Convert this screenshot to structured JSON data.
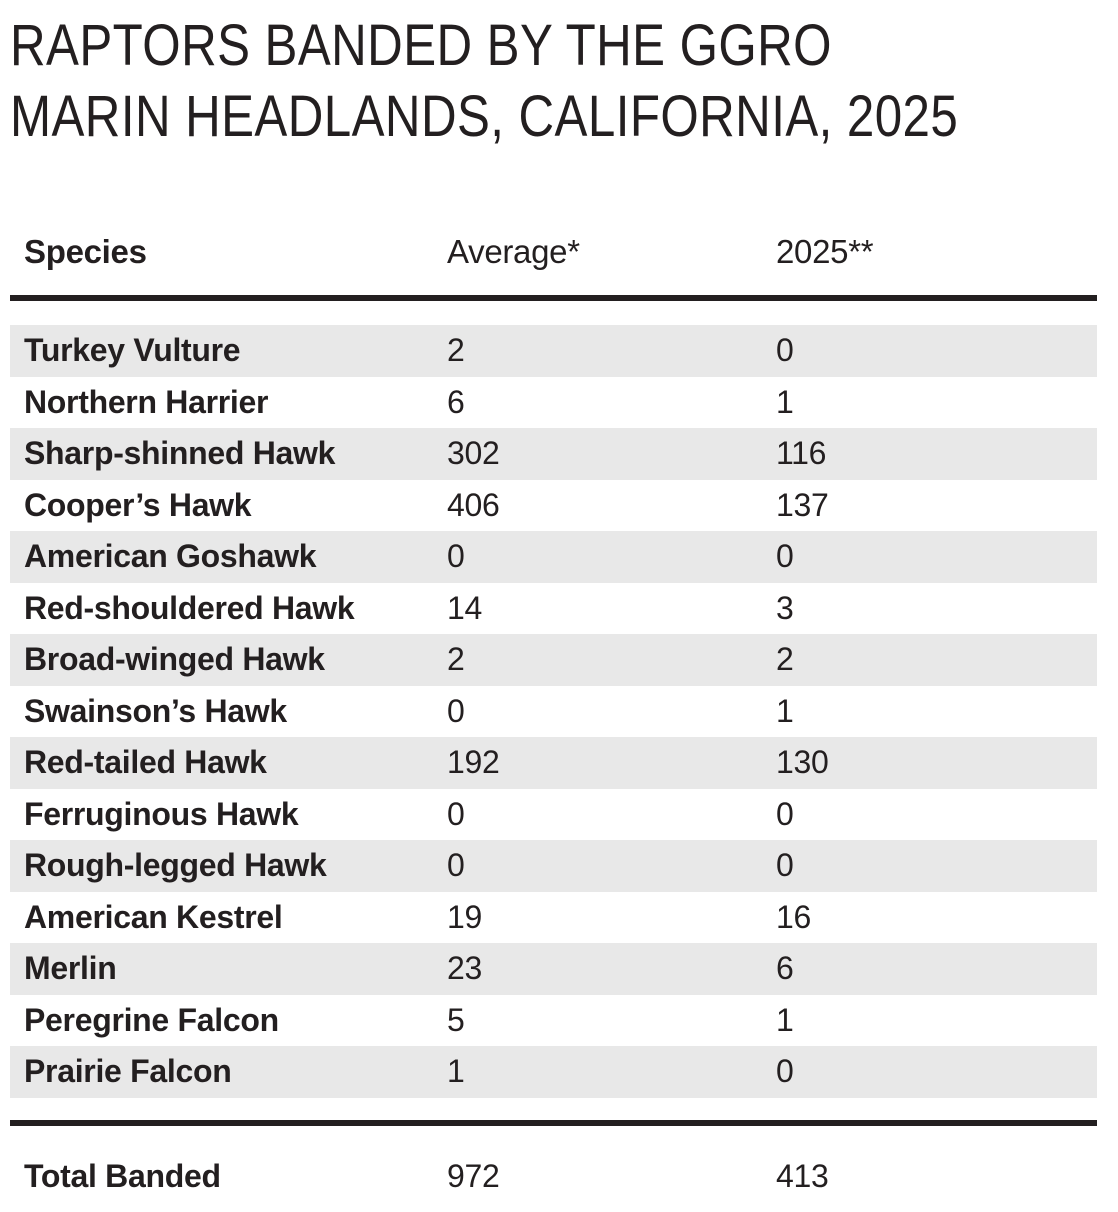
{
  "title": {
    "line1": "RAPTORS BANDED BY THE GGRO",
    "line2": "MARIN HEADLANDS, CALIFORNIA, 2025"
  },
  "table": {
    "columns": {
      "species": "Species",
      "average": "Average*",
      "year": "2025**"
    },
    "rows": [
      {
        "species": "Turkey Vulture",
        "average": "2",
        "count_2025": "0"
      },
      {
        "species": "Northern Harrier",
        "average": "6",
        "count_2025": "1"
      },
      {
        "species": "Sharp-shinned Hawk",
        "average": "302",
        "count_2025": "116"
      },
      {
        "species": "Cooper’s Hawk",
        "average": "406",
        "count_2025": "137"
      },
      {
        "species": "American Goshawk",
        "average": "0",
        "count_2025": "0"
      },
      {
        "species": "Red-shouldered Hawk",
        "average": "14",
        "count_2025": "3"
      },
      {
        "species": "Broad-winged Hawk",
        "average": "2",
        "count_2025": "2"
      },
      {
        "species": "Swainson’s Hawk",
        "average": "0",
        "count_2025": "1"
      },
      {
        "species": "Red-tailed Hawk",
        "average": "192",
        "count_2025": "130"
      },
      {
        "species": "Ferruginous Hawk",
        "average": "0",
        "count_2025": "0"
      },
      {
        "species": "Rough-legged Hawk",
        "average": "0",
        "count_2025": "0"
      },
      {
        "species": "American Kestrel",
        "average": "19",
        "count_2025": "16"
      },
      {
        "species": "Merlin",
        "average": "23",
        "count_2025": "6"
      },
      {
        "species": "Peregrine Falcon",
        "average": "5",
        "count_2025": "1"
      },
      {
        "species": "Prairie Falcon",
        "average": "1",
        "count_2025": "0"
      }
    ],
    "total": {
      "label": "Total Banded",
      "average": "972",
      "count_2025": "413"
    }
  },
  "colors": {
    "text": "#231f20",
    "stripe": "#e8e8e8",
    "rule": "#231f20",
    "background": "#ffffff"
  }
}
